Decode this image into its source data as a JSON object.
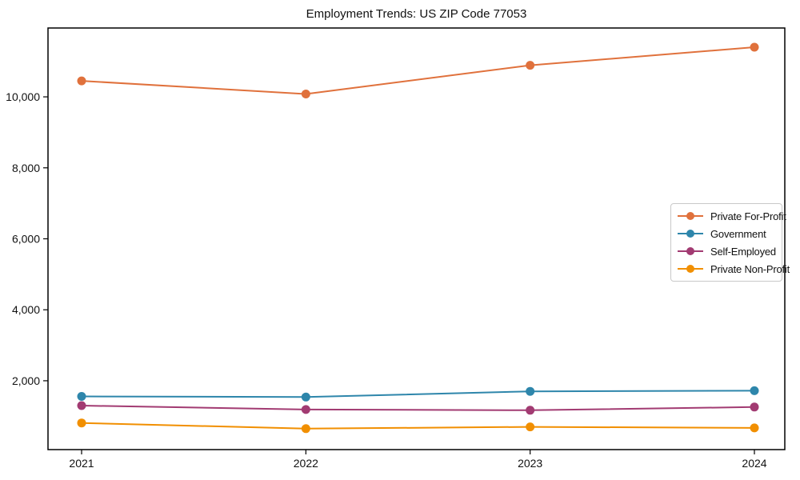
{
  "chart_data": {
    "type": "line",
    "title": "Employment Trends: US ZIP Code 77053",
    "x": [
      2021,
      2022,
      2023,
      2024
    ],
    "x_tick_labels": [
      "2021",
      "2022",
      "2023",
      "2024"
    ],
    "y_ticks": [
      {
        "value": 2000,
        "label": "2,000"
      },
      {
        "value": 4000,
        "label": "4,000"
      },
      {
        "value": 6000,
        "label": "6,000"
      },
      {
        "value": 8000,
        "label": "8,000"
      },
      {
        "value": 10000,
        "label": "10,000"
      }
    ],
    "ylim": [
      60,
      11940
    ],
    "grid": false,
    "marker": "circle",
    "legend_position": "center-right",
    "frame_color": "#000000",
    "series": [
      {
        "name": "Private For-Profit",
        "slug": "private-for-profit",
        "color": "#E0713C",
        "values": [
          10450,
          10080,
          10890,
          11400
        ]
      },
      {
        "name": "Government",
        "slug": "government",
        "color": "#2E86AB",
        "values": [
          1560,
          1540,
          1700,
          1720
        ]
      },
      {
        "name": "Self-Employed",
        "slug": "self-employed",
        "color": "#A23B72",
        "values": [
          1300,
          1190,
          1170,
          1260
        ]
      },
      {
        "name": "Private Non-Profit",
        "slug": "private-non-profit",
        "color": "#F18F01",
        "values": [
          810,
          650,
          700,
          670
        ]
      }
    ]
  }
}
